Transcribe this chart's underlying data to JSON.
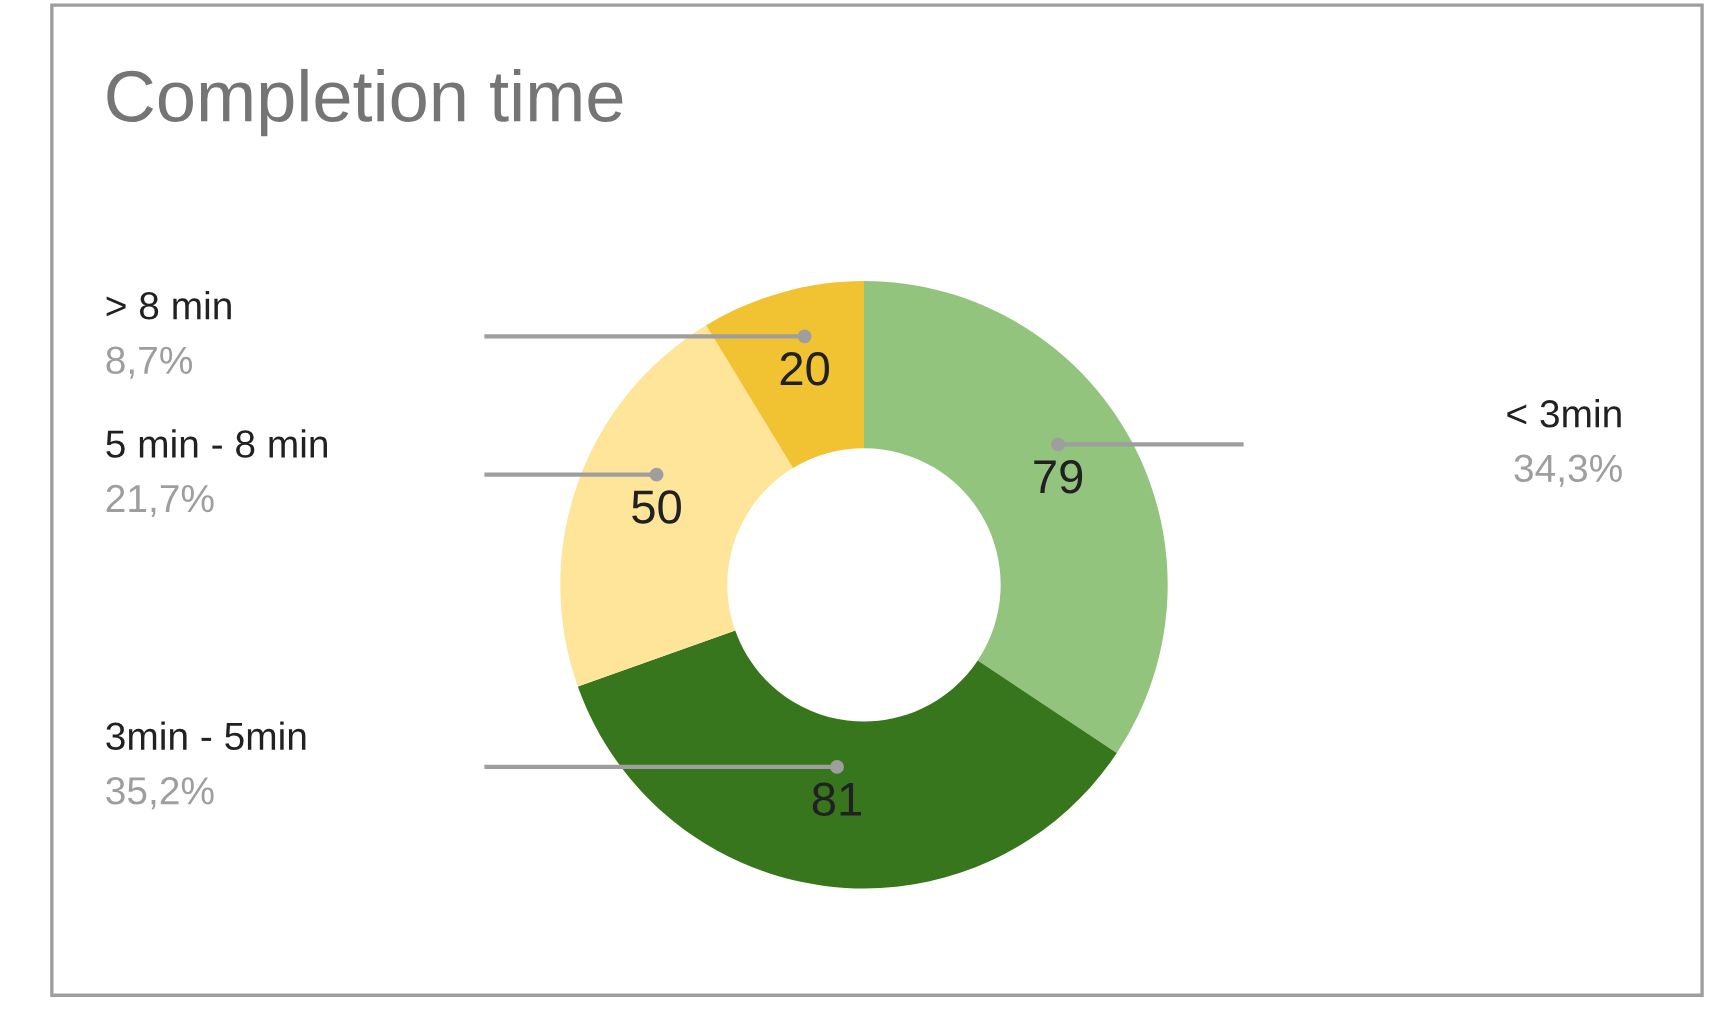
{
  "chart_data": {
    "type": "donut",
    "title": "Completion time",
    "categories": [
      "< 3min",
      "3min - 5min",
      "5 min - 8 min",
      "> 8 min"
    ],
    "values": [
      79,
      81,
      50,
      20
    ],
    "colors": [
      "#93c47d",
      "#38761d",
      "#ffe599",
      "#f1c232"
    ],
    "data_labels": true,
    "annotations": [
      "34,3%",
      "35,2%",
      "21,7%",
      "8,7%"
    ],
    "legend": false
  }
}
